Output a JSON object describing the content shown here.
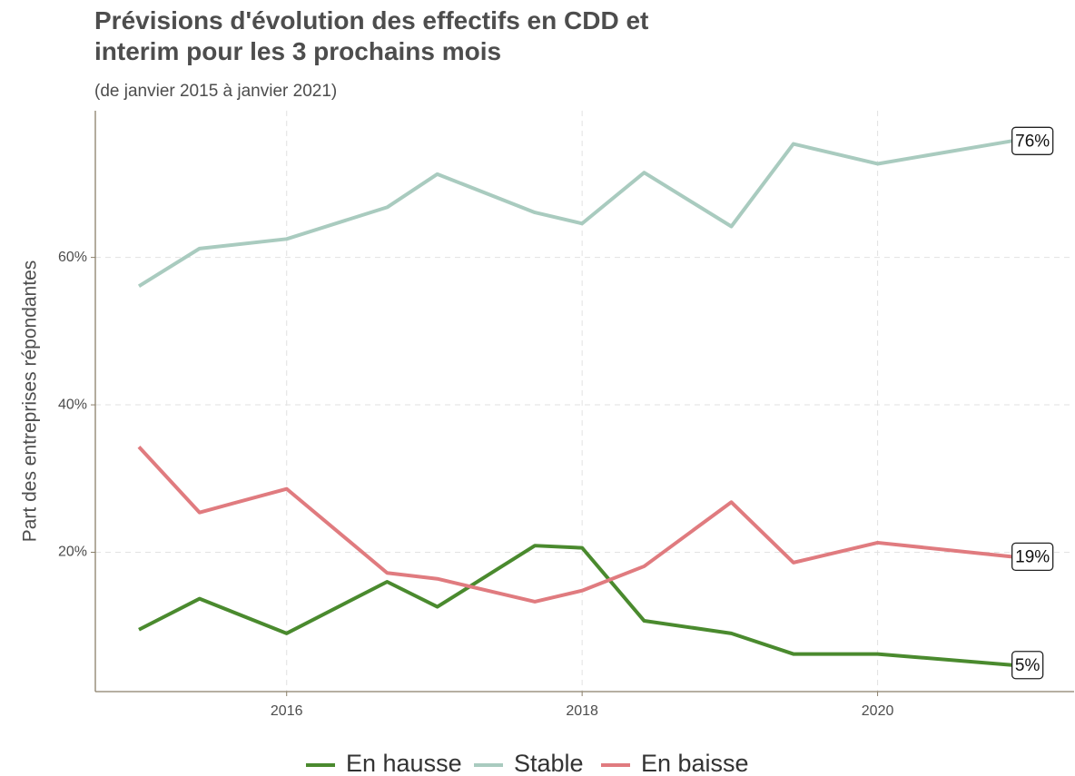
{
  "chart_data": {
    "type": "line",
    "title": "Prévisions d'évolution des effectifs en CDD et interim pour les 3 prochains mois",
    "subtitle": "(de janvier 2015 à janvier 2021)",
    "y_label": "Part des entreprises répondantes",
    "x": [
      2015.0,
      2015.41,
      2016.0,
      2016.68,
      2017.02,
      2017.68,
      2018.0,
      2018.42,
      2019.01,
      2019.43,
      2020.0,
      2020.91
    ],
    "series": [
      {
        "name": "En hausse",
        "color": "#4a8a2e",
        "values": [
          9.5,
          13.7,
          9.0,
          16.0,
          12.6,
          20.9,
          20.6,
          10.7,
          9.0,
          6.2,
          6.2,
          4.7
        ],
        "value_labels": [
          null,
          null,
          null,
          null,
          null,
          null,
          null,
          null,
          null,
          null,
          null,
          "5%"
        ]
      },
      {
        "name": "Stable",
        "color": "#a9cbbf",
        "values": [
          56.1,
          61.2,
          62.5,
          66.8,
          71.3,
          66.1,
          64.6,
          71.5,
          64.2,
          75.4,
          72.7,
          75.8
        ],
        "value_labels": [
          null,
          null,
          null,
          null,
          null,
          null,
          null,
          null,
          null,
          null,
          null,
          "76%"
        ]
      },
      {
        "name": "En baisse",
        "color": "#e07b7f",
        "values": [
          34.3,
          25.4,
          28.6,
          17.2,
          16.4,
          13.3,
          14.8,
          18.1,
          26.8,
          18.6,
          21.3,
          19.4
        ],
        "value_labels": [
          null,
          null,
          null,
          null,
          null,
          null,
          null,
          null,
          null,
          null,
          null,
          "19%"
        ]
      }
    ],
    "xlim": [
      2014.705,
      2021.33
    ],
    "xticks": [
      2016,
      2018,
      2020
    ],
    "ylim": [
      1.1,
      79.9
    ],
    "yticks": [
      {
        "value": 20,
        "label": "20%"
      },
      {
        "value": 40,
        "label": "40%"
      },
      {
        "value": 60,
        "label": "60%"
      }
    ],
    "grid": true,
    "legend": "bottom"
  }
}
